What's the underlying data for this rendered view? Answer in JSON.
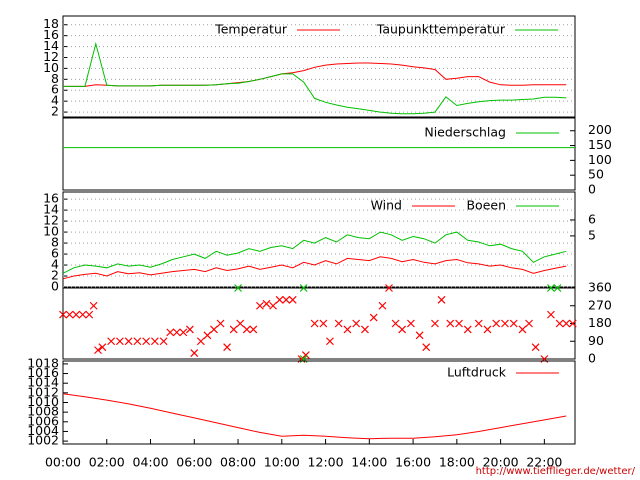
{
  "chart_data": [
    {
      "type": "line",
      "xlim": [
        0,
        23.4
      ],
      "ylim": [
        1.1,
        19.6
      ],
      "yticks": [
        2,
        4,
        6,
        8,
        10,
        12,
        14,
        16,
        18
      ],
      "grid": true,
      "x": [
        0,
        0.5,
        1,
        1.5,
        2,
        2.5,
        3,
        3.5,
        4,
        4.5,
        5,
        5.5,
        6,
        6.5,
        7,
        7.5,
        8,
        8.5,
        9,
        9.5,
        10,
        10.5,
        11,
        11.5,
        12,
        12.5,
        13,
        13.5,
        14,
        14.5,
        15,
        15.5,
        16,
        16.5,
        17,
        17.5,
        18,
        18.5,
        19,
        19.5,
        20,
        20.5,
        21,
        21.5,
        22,
        22.5,
        23
      ],
      "series": [
        {
          "name": "Temperatur",
          "color": "#ff0000",
          "values": [
            6.7,
            6.7,
            6.7,
            7.0,
            6.9,
            6.8,
            6.8,
            6.8,
            6.8,
            6.9,
            6.9,
            6.9,
            6.9,
            6.9,
            7.0,
            7.2,
            7.4,
            7.6,
            8.0,
            8.5,
            9.0,
            9.2,
            9.6,
            10.2,
            10.6,
            10.8,
            10.9,
            11.0,
            11.0,
            10.9,
            10.8,
            10.6,
            10.3,
            10.1,
            9.8,
            8.0,
            8.2,
            8.5,
            8.5,
            7.5,
            7.0,
            6.9,
            6.9,
            7.0,
            7.0,
            7.0,
            7.0
          ]
        },
        {
          "name": "Taupunkttemperatur",
          "color": "#00c000",
          "values": [
            6.7,
            6.7,
            6.7,
            14.5,
            6.9,
            6.8,
            6.8,
            6.8,
            6.8,
            6.9,
            6.9,
            6.9,
            6.9,
            6.9,
            7.0,
            7.2,
            7.3,
            7.6,
            8.0,
            8.5,
            9.0,
            9.0,
            7.5,
            4.5,
            3.8,
            3.3,
            2.9,
            2.6,
            2.3,
            2.0,
            1.8,
            1.7,
            1.7,
            1.8,
            2.0,
            4.8,
            3.2,
            3.6,
            3.9,
            4.1,
            4.2,
            4.2,
            4.3,
            4.4,
            4.7,
            4.7,
            4.6
          ]
        }
      ]
    },
    {
      "type": "line",
      "xlim": [
        0,
        23.4
      ],
      "y2lim": [
        0,
        243
      ],
      "y2ticks": [
        0,
        50,
        100,
        150,
        200
      ],
      "x": [
        0,
        23.4
      ],
      "series": [
        {
          "name": "Niederschlag",
          "color": "#00c000",
          "axis": "y2",
          "values": [
            143,
            143
          ]
        }
      ]
    },
    {
      "type": "line",
      "xlim": [
        0,
        23.4
      ],
      "ylim": [
        0,
        17.3
      ],
      "yticks": [
        0,
        2,
        4,
        6,
        8,
        10,
        12,
        14,
        16
      ],
      "y2lim": [
        1.8,
        7.75
      ],
      "y2ticks": [
        5,
        6
      ],
      "grid": true,
      "x": [
        0,
        0.5,
        1,
        1.5,
        2,
        2.5,
        3,
        3.5,
        4,
        4.5,
        5,
        5.5,
        6,
        6.5,
        7,
        7.5,
        8,
        8.5,
        9,
        9.5,
        10,
        10.5,
        11,
        11.5,
        12,
        12.5,
        13,
        13.5,
        14,
        14.5,
        15,
        15.5,
        16,
        16.5,
        17,
        17.5,
        18,
        18.5,
        19,
        19.5,
        20,
        20.5,
        21,
        21.5,
        22,
        22.5,
        23
      ],
      "series": [
        {
          "name": "Wind",
          "color": "#ff0000",
          "values": [
            1.5,
            2,
            2.3,
            2.5,
            2,
            2.8,
            2.4,
            2.6,
            2.2,
            2.5,
            2.8,
            3,
            3.2,
            2.8,
            3.5,
            3,
            3.3,
            3.8,
            3.2,
            3.6,
            4,
            3.5,
            4.5,
            4,
            4.8,
            4.2,
            5.2,
            5,
            4.8,
            5.5,
            5.2,
            4.6,
            5,
            4.5,
            4.2,
            4.8,
            5,
            4.4,
            4.2,
            3.8,
            4,
            3.5,
            3.2,
            2.5,
            3,
            3.4,
            3.8
          ]
        },
        {
          "name": "Boeen",
          "color": "#00c000",
          "values": [
            2.5,
            3.5,
            4,
            3.8,
            3.5,
            4.2,
            3.8,
            4,
            3.6,
            4.2,
            5,
            5.5,
            6,
            5.2,
            6.5,
            5.8,
            6.2,
            7,
            6.5,
            7.2,
            7.5,
            7,
            8.5,
            8,
            9,
            8.2,
            9.5,
            9,
            8.8,
            10,
            9.5,
            8.5,
            9.2,
            8.8,
            8,
            9.5,
            10,
            8.5,
            8.2,
            7.5,
            7.8,
            7,
            6.5,
            4.5,
            5.5,
            6,
            6.5
          ]
        }
      ]
    },
    {
      "type": "scatter",
      "xlim": [
        0,
        23.4
      ],
      "y2lim": [
        0,
        360
      ],
      "y2ticks": [
        0,
        90,
        180,
        270,
        360
      ],
      "series": [
        {
          "color": "#ff0000",
          "axis": "y2",
          "x": [
            0,
            0.3,
            0.6,
            0.9,
            1.2,
            1.4,
            1.6,
            1.8,
            2.2,
            2.6,
            3,
            3.4,
            3.8,
            4.2,
            4.6,
            4.9,
            5.2,
            5.5,
            5.8,
            6.0,
            6.3,
            6.6,
            6.9,
            7.2,
            7.5,
            7.8,
            8.1,
            8.4,
            8.7,
            9.0,
            9.3,
            9.6,
            9.9,
            10.2,
            10.5,
            10.9,
            11.1,
            11.5,
            11.9,
            12.2,
            12.6,
            13.0,
            13.4,
            13.8,
            14.2,
            14.6,
            14.9,
            15.2,
            15.5,
            15.9,
            16.3,
            16.6,
            17.0,
            17.3,
            17.7,
            18.1,
            18.5,
            19.0,
            19.4,
            19.8,
            20.2,
            20.6,
            21.0,
            21.3,
            21.6,
            22.0,
            22.3,
            22.7,
            23.0,
            23.3
          ],
          "values": [
            225,
            225,
            225,
            225,
            225,
            270,
            45,
            60,
            90,
            90,
            90,
            90,
            90,
            90,
            90,
            135,
            135,
            135,
            150,
            30,
            90,
            120,
            150,
            180,
            60,
            150,
            180,
            150,
            150,
            270,
            280,
            270,
            300,
            300,
            300,
            0,
            20,
            180,
            180,
            90,
            180,
            150,
            180,
            150,
            210,
            270,
            360,
            180,
            150,
            180,
            120,
            60,
            180,
            300,
            180,
            180,
            150,
            180,
            150,
            180,
            180,
            180,
            150,
            180,
            60,
            0,
            225,
            180,
            180,
            180
          ]
        },
        {
          "color": "#00c000",
          "axis": "y2",
          "x": [
            8.0,
            11.0,
            11.0,
            22.3,
            22.6
          ],
          "values": [
            360,
            360,
            0,
            360,
            360
          ]
        }
      ]
    },
    {
      "type": "line",
      "xlim": [
        0,
        23.4
      ],
      "ylim": [
        1001.4,
        1018.6
      ],
      "yticks": [
        1002,
        1004,
        1006,
        1008,
        1010,
        1012,
        1014,
        1016,
        1018
      ],
      "xticks": [
        {
          "value": 0,
          "label": "00:00"
        },
        {
          "value": 2,
          "label": "02:00"
        },
        {
          "value": 4,
          "label": "04:00"
        },
        {
          "value": 6,
          "label": "06:00"
        },
        {
          "value": 8,
          "label": "08:00"
        },
        {
          "value": 10,
          "label": "10:00"
        },
        {
          "value": 12,
          "label": "12:00"
        },
        {
          "value": 14,
          "label": "14:00"
        },
        {
          "value": 16,
          "label": "16:00"
        },
        {
          "value": 18,
          "label": "18:00"
        },
        {
          "value": 20,
          "label": "20:00"
        },
        {
          "value": 22,
          "label": "22:00"
        }
      ],
      "x": [
        0,
        1,
        2,
        3,
        4,
        5,
        6,
        7,
        8,
        9,
        10,
        11,
        12,
        13,
        14,
        15,
        16,
        17,
        18,
        19,
        20,
        21,
        22,
        23
      ],
      "series": [
        {
          "name": "Luftdruck",
          "color": "#ff0000",
          "values": [
            1011.8,
            1011.2,
            1010.5,
            1009.7,
            1008.8,
            1007.8,
            1006.8,
            1005.8,
            1004.8,
            1003.8,
            1003.0,
            1003.2,
            1003.0,
            1002.7,
            1002.5,
            1002.6,
            1002.6,
            1002.9,
            1003.3,
            1004.0,
            1004.8,
            1005.6,
            1006.4,
            1007.2
          ]
        }
      ]
    }
  ],
  "footer": "http://www.tiefflieger.de/wetter/"
}
